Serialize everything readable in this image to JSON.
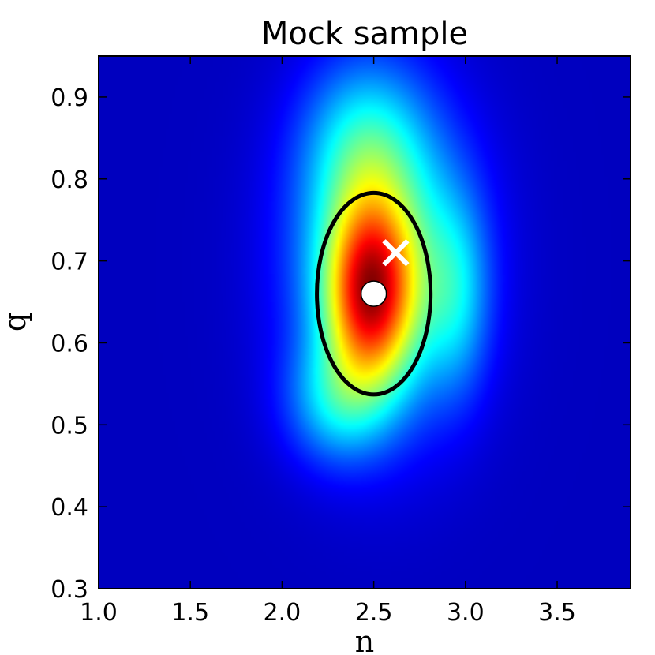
{
  "chart_data": {
    "type": "heatmap",
    "title": "Mock sample",
    "xlabel": "n",
    "ylabel": "q",
    "xlim": [
      1.0,
      3.9
    ],
    "ylim": [
      0.3,
      0.95
    ],
    "xticks": [
      1.0,
      1.5,
      2.0,
      2.5,
      3.0,
      3.5
    ],
    "xtick_labels": [
      "1.0",
      "1.5",
      "2.0",
      "2.5",
      "3.0",
      "3.5"
    ],
    "yticks": [
      0.3,
      0.4,
      0.5,
      0.6,
      0.7,
      0.8,
      0.9
    ],
    "ytick_labels": [
      "0.3",
      "0.4",
      "0.5",
      "0.6",
      "0.7",
      "0.8",
      "0.9"
    ],
    "colormap": "jet",
    "background_color": "#00007f",
    "density_components": [
      {
        "n": 2.48,
        "q": 0.66,
        "sigma_n": 0.16,
        "sigma_q": 0.075,
        "weight": 1.0
      },
      {
        "n": 2.55,
        "q": 0.7,
        "sigma_n": 0.3,
        "sigma_q": 0.12,
        "weight": 0.55
      },
      {
        "n": 2.45,
        "q": 0.84,
        "sigma_n": 0.22,
        "sigma_q": 0.07,
        "weight": 0.3
      },
      {
        "n": 2.3,
        "q": 0.53,
        "sigma_n": 0.18,
        "sigma_q": 0.05,
        "weight": 0.3
      },
      {
        "n": 2.95,
        "q": 0.66,
        "sigma_n": 0.12,
        "sigma_q": 0.08,
        "weight": 0.25
      }
    ],
    "ellipse": {
      "center_n": 2.5,
      "center_q": 0.66,
      "half_width_n": 0.31,
      "half_height_q": 0.123,
      "color": "#000000"
    },
    "circle_marker": {
      "n": 2.5,
      "q": 0.66,
      "color": "#ffffff"
    },
    "cross_marker": {
      "n": 2.62,
      "q": 0.71,
      "color": "#ffffff"
    }
  }
}
